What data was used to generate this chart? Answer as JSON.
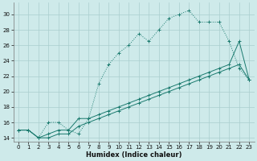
{
  "xlabel": "Humidex (Indice chaleur)",
  "x_values": [
    0,
    1,
    2,
    3,
    4,
    5,
    6,
    7,
    8,
    9,
    10,
    11,
    12,
    13,
    14,
    15,
    16,
    17,
    18,
    19,
    20,
    21,
    22,
    23
  ],
  "line1_y": [
    15.0,
    15.0,
    14.0,
    16.0,
    16.0,
    15.0,
    14.5,
    16.5,
    21.0,
    23.5,
    25.0,
    26.0,
    27.5,
    26.5,
    28.0,
    29.5,
    30.0,
    30.5,
    29.0,
    29.0,
    29.0,
    26.5,
    23.0,
    21.5
  ],
  "line2_y": [
    15.0,
    15.0,
    14.0,
    14.5,
    15.0,
    15.0,
    16.5,
    16.5,
    17.0,
    17.5,
    18.0,
    18.5,
    19.0,
    19.5,
    20.0,
    20.5,
    21.0,
    21.5,
    22.0,
    22.5,
    23.0,
    23.5,
    26.5,
    21.5
  ],
  "line3_y": [
    15.0,
    15.0,
    14.0,
    14.0,
    14.5,
    14.5,
    15.5,
    16.0,
    16.5,
    17.0,
    17.5,
    18.0,
    18.5,
    19.0,
    19.5,
    20.0,
    20.5,
    21.0,
    21.5,
    22.0,
    22.5,
    23.0,
    23.5,
    21.5
  ],
  "line_color": "#1a7a6e",
  "bg_color": "#ceeaea",
  "grid_color": "#aacece",
  "ylim": [
    13.5,
    31.5
  ],
  "yticks": [
    14,
    16,
    18,
    20,
    22,
    24,
    26,
    28,
    30
  ],
  "xlim": [
    -0.5,
    23.5
  ],
  "xticks": [
    0,
    1,
    2,
    3,
    4,
    5,
    6,
    7,
    8,
    9,
    10,
    11,
    12,
    13,
    14,
    15,
    16,
    17,
    18,
    19,
    20,
    21,
    22,
    23
  ]
}
